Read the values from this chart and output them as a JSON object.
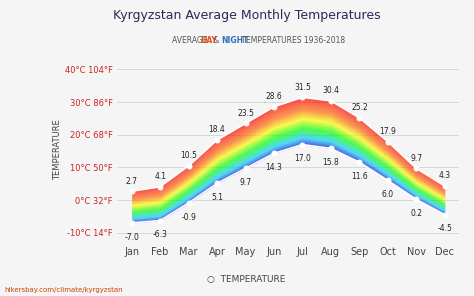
{
  "title": "Kyrgyzstan Average Monthly Temperatures",
  "subtitle_plain": "AVERAGE ",
  "subtitle_day": "DAY",
  "subtitle_mid": " & ",
  "subtitle_night": "NIGHT",
  "subtitle_end": " TEMPERATURES 1936-2018",
  "months": [
    "Jan",
    "Feb",
    "Mar",
    "Apr",
    "May",
    "Jun",
    "Jul",
    "Aug",
    "Sep",
    "Oct",
    "Nov",
    "Dec"
  ],
  "day_temps": [
    2.7,
    4.1,
    10.5,
    18.4,
    23.5,
    28.6,
    31.5,
    30.4,
    25.2,
    17.9,
    9.7,
    4.3
  ],
  "night_temps": [
    -7.0,
    -6.3,
    -0.9,
    5.1,
    9.7,
    14.3,
    17.0,
    15.8,
    11.6,
    6.0,
    0.2,
    -4.5
  ],
  "yticks": [
    -10,
    0,
    10,
    20,
    30,
    40
  ],
  "ytick_labels": [
    "-10°C 14°F",
    "0°C 32°F",
    "10°C 50°F",
    "20°C 68°F",
    "30°C 86°F",
    "40°C 104°F"
  ],
  "ylabel": "TEMPERATURE",
  "xlabel": "TEMPERATURE",
  "footer": "hikersbay.com/climate/kyrgyzstan",
  "bg_color": "#f0f0f0",
  "title_color": "#333333",
  "day_label_color": "#e05020",
  "night_label_color": "#3070c0",
  "ytick_label_color": "#cc2222",
  "grid_color": "#cccccc",
  "line_color": "#ffffff",
  "marker_color": "#ffffff"
}
